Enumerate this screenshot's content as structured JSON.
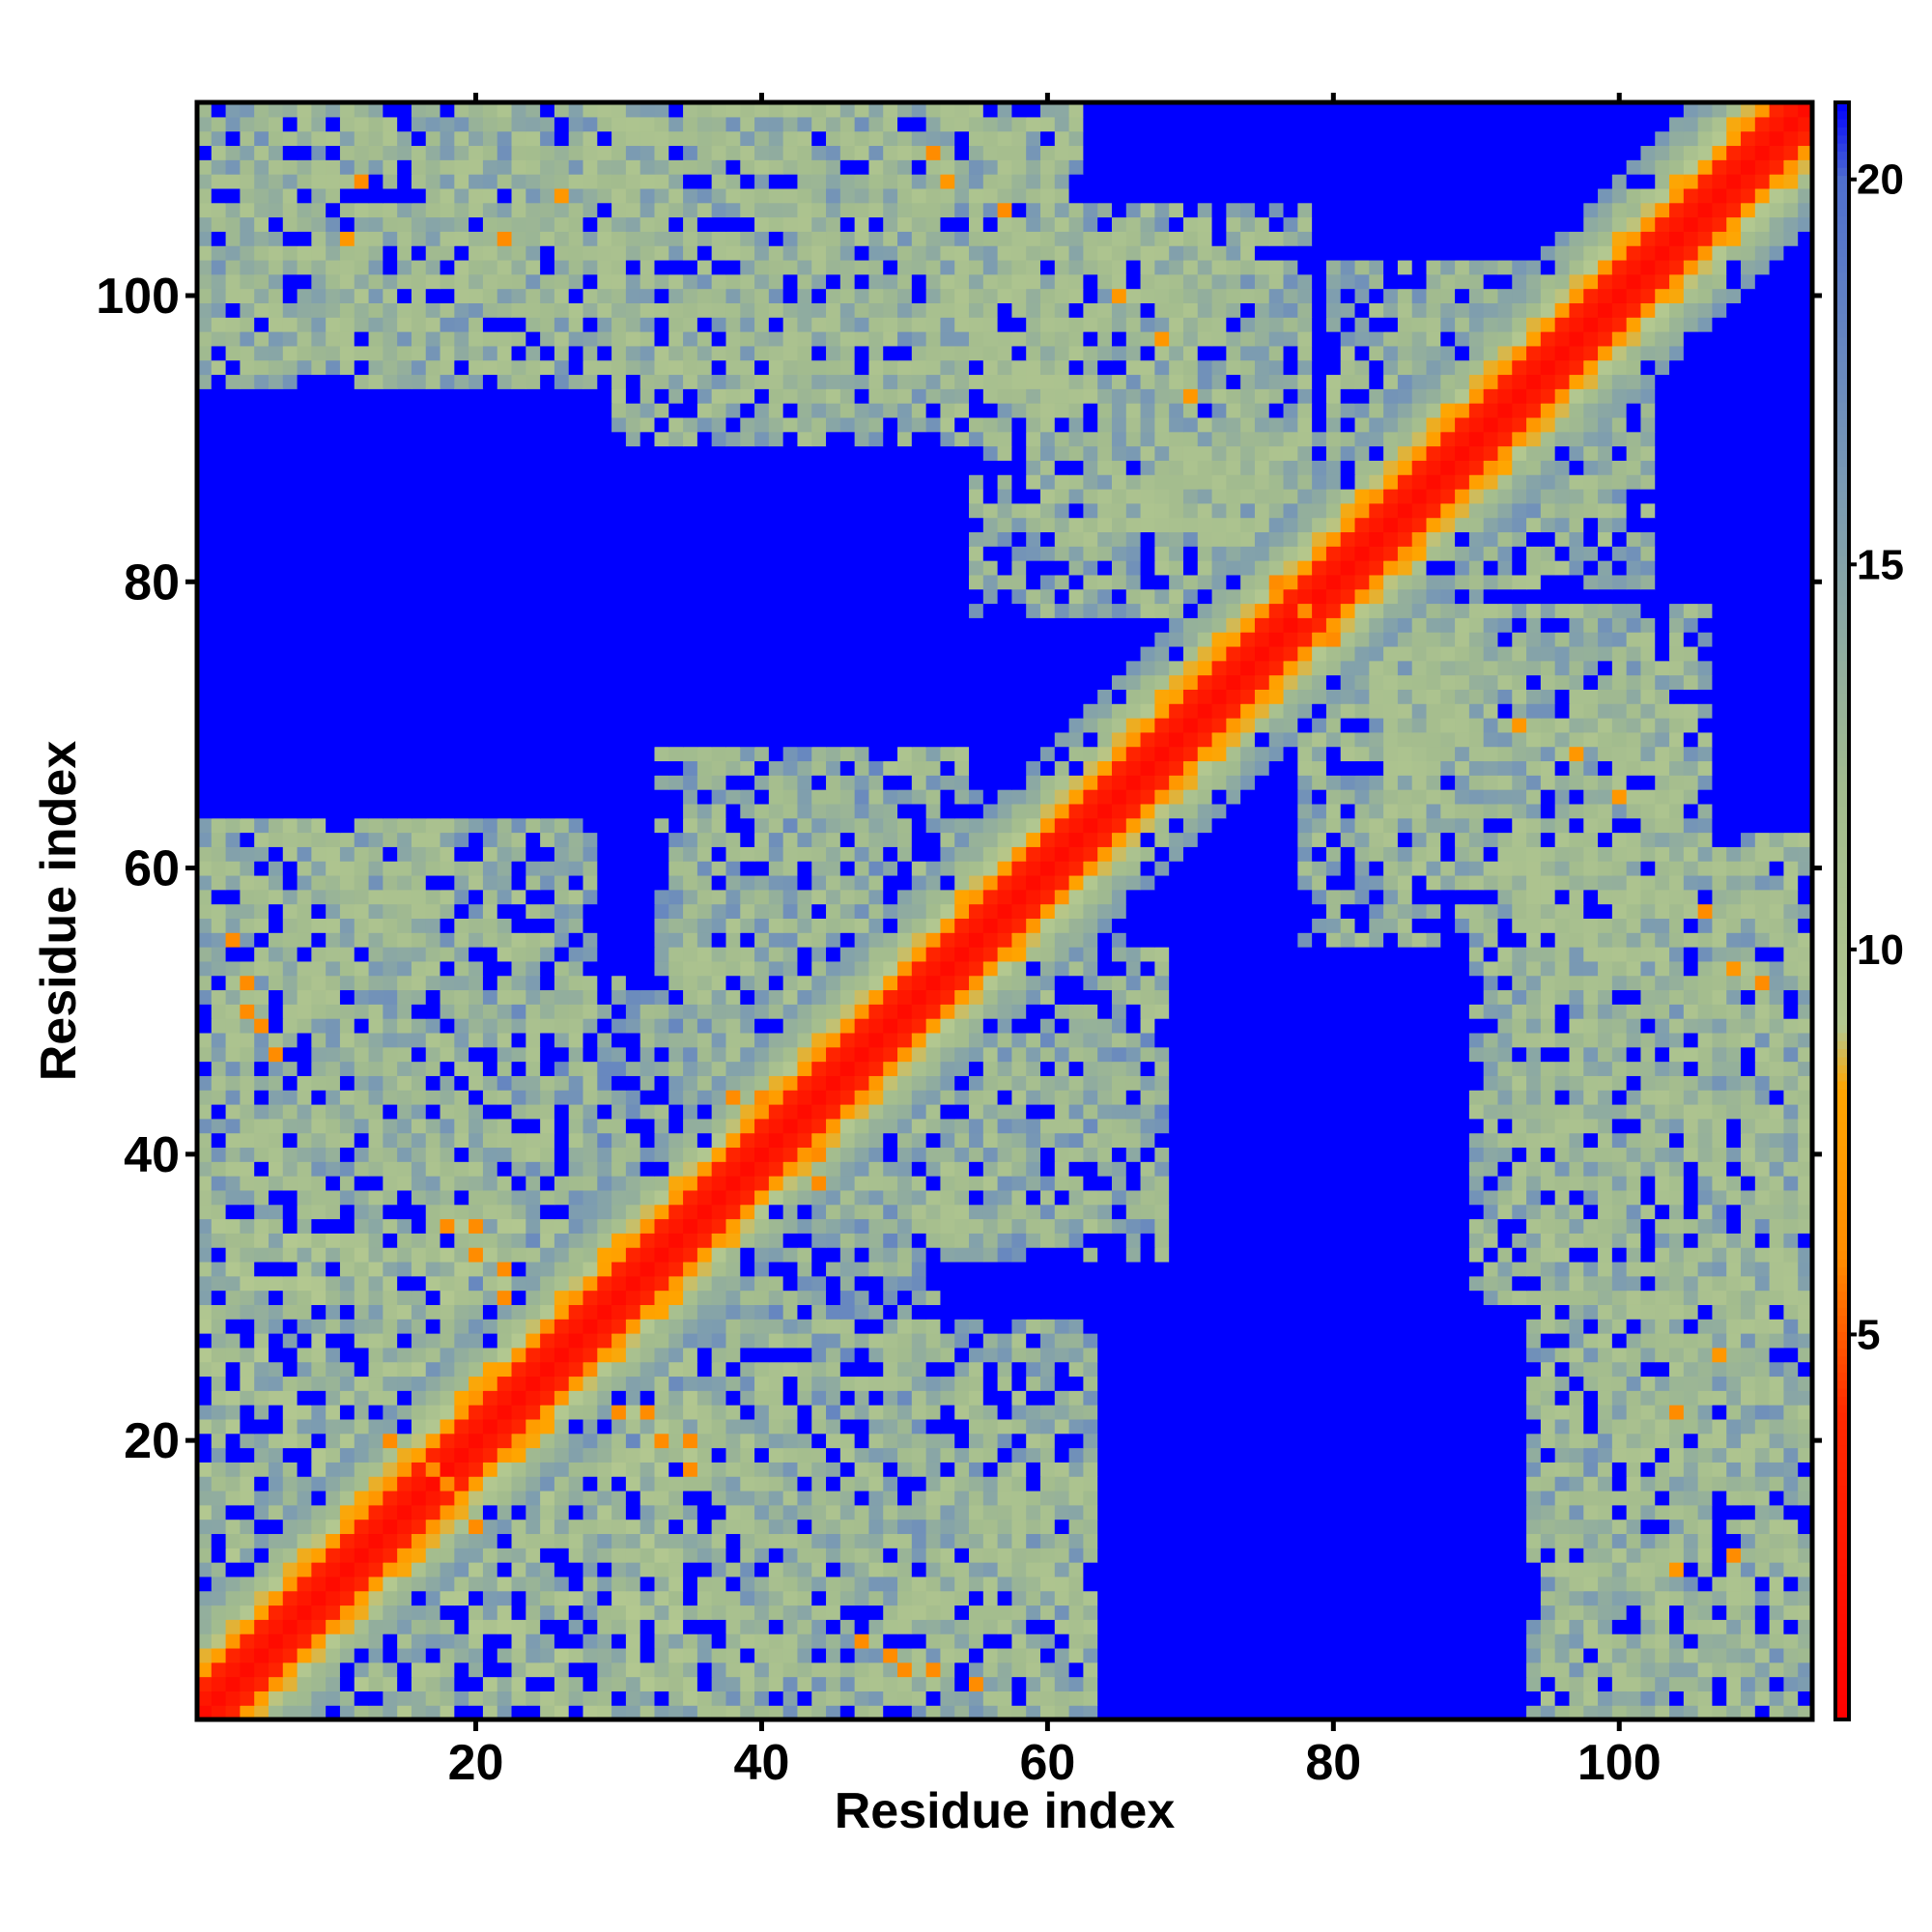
{
  "chart_data": {
    "type": "heatmap",
    "title": "",
    "xlabel": "Residue index",
    "ylabel": "Residue index",
    "n_residues": 113,
    "xlim": [
      1,
      113
    ],
    "ylim": [
      1,
      113
    ],
    "x_ticks": [
      20,
      40,
      60,
      80,
      100
    ],
    "y_ticks": [
      20,
      40,
      60,
      80,
      100
    ],
    "x_tick_labels": [
      "20",
      "40",
      "60",
      "80",
      "100"
    ],
    "y_tick_labels": [
      "20",
      "40",
      "60",
      "80",
      "100"
    ],
    "colorbar": {
      "range": [
        0,
        21
      ],
      "ticks": [
        5,
        10,
        15,
        20
      ],
      "tick_labels": [
        "5",
        "10",
        "15",
        "20"
      ],
      "cutoff_no_contact": 21
    },
    "value_description": "residue-residue distance; saturated at cutoff (blue) beyond ~20",
    "diagonal_band": {
      "core_width": 2,
      "orange_width": 4,
      "green_width": 8
    },
    "contact_regions": [
      {
        "x": [
          1,
          35
        ],
        "y": [
          1,
          35
        ],
        "level": 11
      },
      {
        "x": [
          1,
          18
        ],
        "y": [
          36,
          63
        ],
        "level": 12
      },
      {
        "x": [
          18,
          38
        ],
        "y": [
          30,
          52
        ],
        "level": 13
      },
      {
        "x": [
          33,
          63
        ],
        "y": [
          1,
          28
        ],
        "level": 12
      },
      {
        "x": [
          35,
          55
        ],
        "y": [
          38,
          68
        ],
        "level": 12
      },
      {
        "x": [
          52,
          68
        ],
        "y": [
          33,
          48
        ],
        "level": 13
      },
      {
        "x": [
          1,
          30
        ],
        "y": [
          94,
          113
        ],
        "level": 12
      },
      {
        "x": [
          30,
          60
        ],
        "y": [
          90,
          113
        ],
        "level": 12
      },
      {
        "x": [
          55,
          75
        ],
        "y": [
          78,
          105
        ],
        "level": 12
      },
      {
        "x": [
          70,
          88
        ],
        "y": [
          68,
          90
        ],
        "level": 12
      },
      {
        "x": [
          84,
          106
        ],
        "y": [
          60,
          78
        ],
        "level": 12
      },
      {
        "x": [
          92,
          113
        ],
        "y": [
          30,
          62
        ],
        "level": 12
      },
      {
        "x": [
          95,
          113
        ],
        "y": [
          1,
          30
        ],
        "level": 12
      },
      {
        "x": [
          80,
          100
        ],
        "y": [
          82,
          102
        ],
        "level": 12
      }
    ],
    "hotspots": [
      {
        "x": 4,
        "y": 50,
        "level": 6
      },
      {
        "x": 6,
        "y": 47,
        "level": 6
      },
      {
        "x": 20,
        "y": 35,
        "level": 6
      },
      {
        "x": 22,
        "y": 32,
        "level": 6
      },
      {
        "x": 25,
        "y": 28,
        "level": 6
      },
      {
        "x": 30,
        "y": 22,
        "level": 6
      },
      {
        "x": 33,
        "y": 20,
        "level": 6
      },
      {
        "x": 35,
        "y": 18,
        "level": 6
      },
      {
        "x": 17,
        "y": 18,
        "level": 6
      },
      {
        "x": 14,
        "y": 20,
        "level": 6
      },
      {
        "x": 40,
        "y": 44,
        "level": 6
      },
      {
        "x": 43,
        "y": 40,
        "level": 7
      },
      {
        "x": 44,
        "y": 38,
        "level": 6
      },
      {
        "x": 49,
        "y": 5,
        "level": 6
      },
      {
        "x": 52,
        "y": 4,
        "level": 6
      },
      {
        "x": 55,
        "y": 3,
        "level": 6
      },
      {
        "x": 65,
        "y": 100,
        "level": 7
      },
      {
        "x": 68,
        "y": 97,
        "level": 7
      },
      {
        "x": 70,
        "y": 93,
        "level": 7
      },
      {
        "x": 76,
        "y": 80,
        "level": 6
      },
      {
        "x": 78,
        "y": 78,
        "level": 6
      },
      {
        "x": 106,
        "y": 57,
        "level": 6
      },
      {
        "x": 110,
        "y": 52,
        "level": 6
      },
      {
        "x": 104,
        "y": 22,
        "level": 6
      },
      {
        "x": 108,
        "y": 12,
        "level": 6
      },
      {
        "x": 11,
        "y": 104,
        "level": 7
      },
      {
        "x": 26,
        "y": 107,
        "level": 7
      },
      {
        "x": 53,
        "y": 108,
        "level": 7
      }
    ],
    "scale_colors": [
      {
        "v": 0,
        "color": "#ff0000"
      },
      {
        "v": 4,
        "color": "#ff2a00"
      },
      {
        "v": 6,
        "color": "#ff8c00"
      },
      {
        "v": 8.2,
        "color": "#ffa500"
      },
      {
        "v": 9,
        "color": "#b3c890"
      },
      {
        "v": 12,
        "color": "#a3bc8e"
      },
      {
        "v": 16,
        "color": "#7a9ab3"
      },
      {
        "v": 20,
        "color": "#4f6fcf"
      },
      {
        "v": 21,
        "color": "#0000ff"
      }
    ]
  }
}
